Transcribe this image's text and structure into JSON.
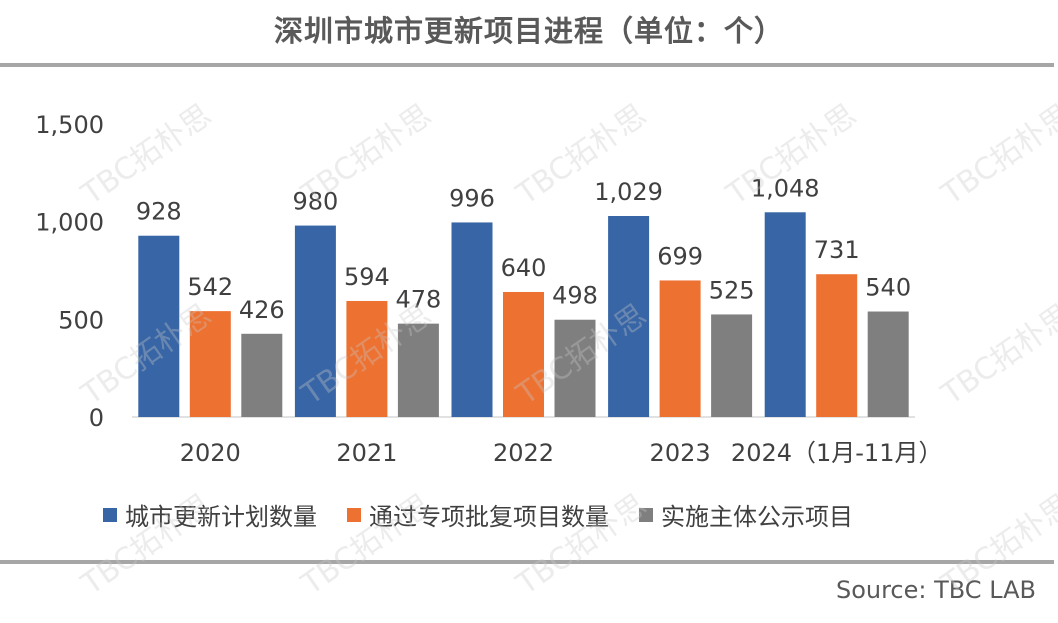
{
  "title": "深圳市城市更新项目进程（单位：个）",
  "source": "Source: TBC LAB",
  "watermark": "TBC拓朴思",
  "colors": {
    "series1": "#3765a5",
    "series2": "#ed7131",
    "series3": "#7f7f7f"
  },
  "chart_data": {
    "type": "bar",
    "categories": [
      "2020",
      "2021",
      "2022",
      "2023",
      "2024（1月-11月）"
    ],
    "series": [
      {
        "name": "城市更新计划数量",
        "values": [
          928,
          980,
          996,
          1029,
          1048
        ],
        "labels": [
          "928",
          "980",
          "996",
          "1,029",
          "1,048"
        ]
      },
      {
        "name": "通过专项批复项目数量",
        "values": [
          542,
          594,
          640,
          699,
          731
        ],
        "labels": [
          "542",
          "594",
          "640",
          "699",
          "731"
        ]
      },
      {
        "name": "实施主体公示项目",
        "values": [
          426,
          478,
          498,
          525,
          540
        ],
        "labels": [
          "426",
          "478",
          "498",
          "525",
          "540"
        ]
      }
    ],
    "yticks": [
      "0",
      "500",
      "1,000",
      "1,500"
    ],
    "ylim": [
      0,
      1500
    ],
    "grid": false,
    "legend": "bottom"
  }
}
